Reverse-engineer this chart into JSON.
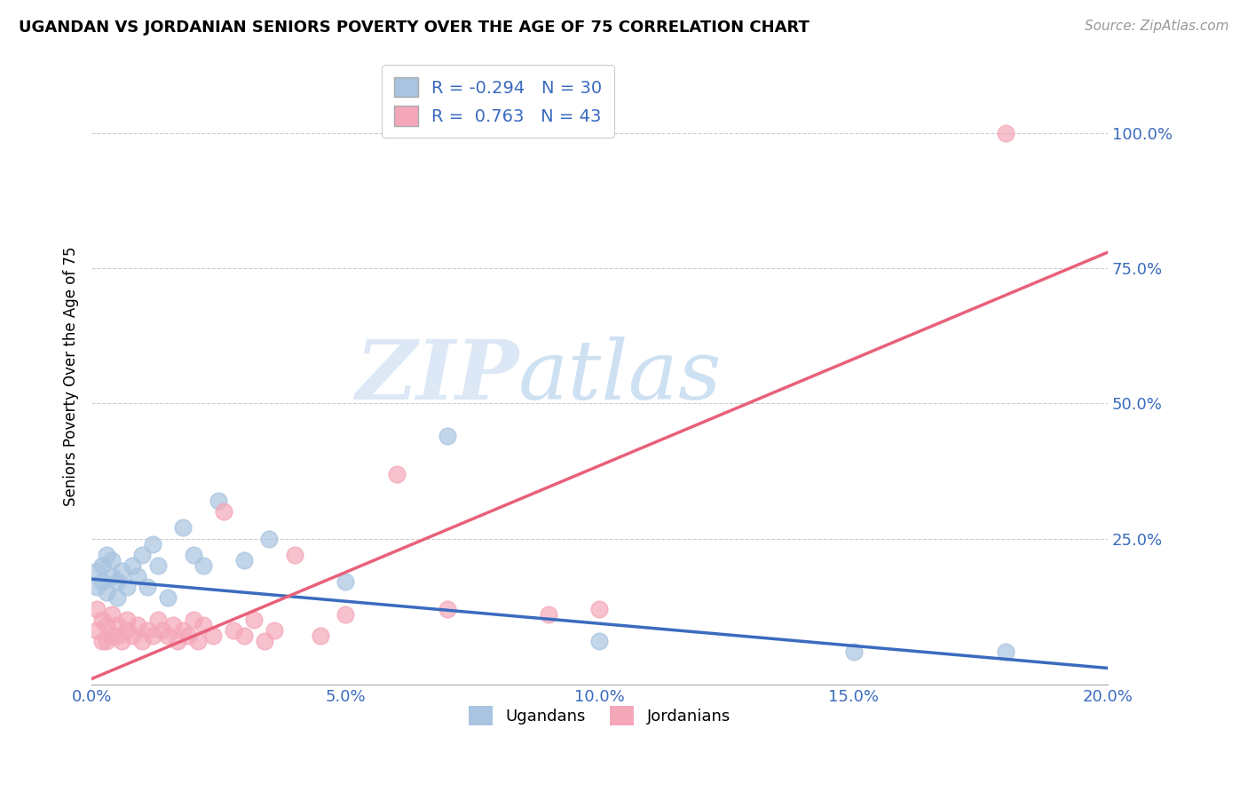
{
  "title": "UGANDAN VS JORDANIAN SENIORS POVERTY OVER THE AGE OF 75 CORRELATION CHART",
  "source": "Source: ZipAtlas.com",
  "ylabel": "Seniors Poverty Over the Age of 75",
  "xlim": [
    0.0,
    0.2
  ],
  "ylim": [
    -0.02,
    1.12
  ],
  "xtick_labels": [
    "0.0%",
    "",
    "5.0%",
    "",
    "10.0%",
    "",
    "15.0%",
    "",
    "20.0%"
  ],
  "xtick_values": [
    0.0,
    0.025,
    0.05,
    0.075,
    0.1,
    0.125,
    0.15,
    0.175,
    0.2
  ],
  "ytick_labels": [
    "25.0%",
    "50.0%",
    "75.0%",
    "100.0%"
  ],
  "ytick_values": [
    0.25,
    0.5,
    0.75,
    1.0
  ],
  "ugandan_color": "#a8c4e0",
  "jordanian_color": "#f4a7b9",
  "ugandan_line_color": "#3a6bbf",
  "jordanian_line_color": "#e8607a",
  "ugandan_R": -0.294,
  "ugandan_N": 30,
  "jordanian_R": 0.763,
  "jordanian_N": 43,
  "watermark_zip": "ZIP",
  "watermark_atlas": "atlas",
  "legend_label_1": "Ugandans",
  "legend_label_2": "Jordanians",
  "ugandan_line_x0": 0.0,
  "ugandan_line_y0": 0.175,
  "ugandan_line_x1": 0.2,
  "ugandan_line_y1": 0.01,
  "jordanian_line_x0": 0.0,
  "jordanian_line_y0": -0.01,
  "jordanian_line_x1": 0.2,
  "jordanian_line_y1": 0.78,
  "ugandan_x": [
    0.001,
    0.001,
    0.002,
    0.002,
    0.003,
    0.003,
    0.004,
    0.004,
    0.005,
    0.005,
    0.006,
    0.007,
    0.008,
    0.009,
    0.01,
    0.011,
    0.012,
    0.013,
    0.015,
    0.018,
    0.02,
    0.022,
    0.025,
    0.03,
    0.035,
    0.05,
    0.07,
    0.1,
    0.15,
    0.18
  ],
  "ugandan_y": [
    0.16,
    0.19,
    0.17,
    0.2,
    0.15,
    0.22,
    0.18,
    0.21,
    0.17,
    0.14,
    0.19,
    0.16,
    0.2,
    0.18,
    0.22,
    0.16,
    0.24,
    0.2,
    0.14,
    0.27,
    0.22,
    0.2,
    0.32,
    0.21,
    0.25,
    0.17,
    0.44,
    0.06,
    0.04,
    0.04
  ],
  "jordanian_x": [
    0.001,
    0.001,
    0.002,
    0.002,
    0.003,
    0.003,
    0.004,
    0.004,
    0.005,
    0.005,
    0.006,
    0.007,
    0.007,
    0.008,
    0.009,
    0.01,
    0.011,
    0.012,
    0.013,
    0.014,
    0.015,
    0.016,
    0.017,
    0.018,
    0.019,
    0.02,
    0.021,
    0.022,
    0.024,
    0.026,
    0.028,
    0.03,
    0.032,
    0.034,
    0.036,
    0.04,
    0.045,
    0.05,
    0.06,
    0.07,
    0.09,
    0.1,
    0.18
  ],
  "jordanian_y": [
    0.12,
    0.08,
    0.1,
    0.06,
    0.09,
    0.06,
    0.07,
    0.11,
    0.09,
    0.07,
    0.06,
    0.08,
    0.1,
    0.07,
    0.09,
    0.06,
    0.08,
    0.07,
    0.1,
    0.08,
    0.07,
    0.09,
    0.06,
    0.08,
    0.07,
    0.1,
    0.06,
    0.09,
    0.07,
    0.3,
    0.08,
    0.07,
    0.1,
    0.06,
    0.08,
    0.22,
    0.07,
    0.11,
    0.37,
    0.12,
    0.11,
    0.12,
    1.0
  ]
}
